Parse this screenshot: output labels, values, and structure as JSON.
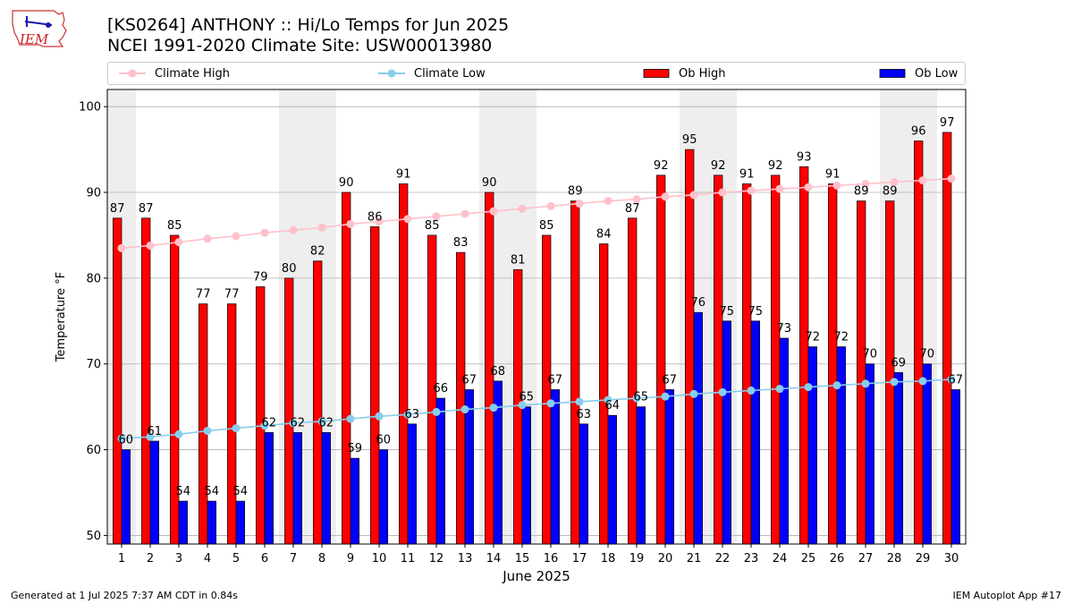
{
  "title_line1": "[KS0264] ANTHONY :: Hi/Lo Temps for Jun 2025",
  "title_line2": "NCEI 1991-2020 Climate Site: USW00013980",
  "logo_text": "IEM",
  "footer_left": "Generated at 1 Jul 2025 7:37 AM CDT in 0.84s",
  "footer_right": "IEM Autoplot App #17",
  "legend": {
    "climate_high": "Climate High",
    "climate_low": "Climate Low",
    "ob_high": "Ob High",
    "ob_low": "Ob Low"
  },
  "colors": {
    "ob_high": "#ff0000",
    "ob_low": "#0000ff",
    "climate_high": "#ffc0cb",
    "climate_low": "#87ceeb",
    "weekend_shade": "#eeeeee"
  },
  "chart_data": {
    "type": "bar",
    "xlabel": "June 2025",
    "ylabel": "Temperature °F",
    "ylim": [
      49,
      102
    ],
    "yticks": [
      50,
      60,
      70,
      80,
      90,
      100
    ],
    "grid": "horizontal",
    "legend_position": "top",
    "categories": [
      "1",
      "2",
      "3",
      "4",
      "5",
      "6",
      "7",
      "8",
      "9",
      "10",
      "11",
      "12",
      "13",
      "14",
      "15",
      "16",
      "17",
      "18",
      "19",
      "20",
      "21",
      "22",
      "23",
      "24",
      "25",
      "26",
      "27",
      "28",
      "29",
      "30"
    ],
    "weekend_days": [
      1,
      7,
      8,
      14,
      15,
      21,
      22,
      28,
      29
    ],
    "series": [
      {
        "name": "Ob High",
        "kind": "bar",
        "values": [
          87,
          87,
          85,
          77,
          77,
          79,
          80,
          82,
          90,
          86,
          91,
          85,
          83,
          90,
          81,
          85,
          89,
          84,
          87,
          92,
          95,
          92,
          91,
          92,
          93,
          91,
          89,
          89,
          96,
          97
        ]
      },
      {
        "name": "Ob Low",
        "kind": "bar",
        "values": [
          60,
          61,
          54,
          54,
          54,
          62,
          62,
          62,
          59,
          60,
          63,
          66,
          67,
          68,
          65,
          67,
          63,
          64,
          65,
          67,
          76,
          75,
          75,
          73,
          72,
          72,
          70,
          69,
          70,
          67
        ]
      },
      {
        "name": "Climate High",
        "kind": "line",
        "values": [
          83.5,
          83.8,
          84.2,
          84.6,
          84.9,
          85.3,
          85.6,
          85.9,
          86.3,
          86.6,
          86.9,
          87.2,
          87.5,
          87.8,
          88.1,
          88.4,
          88.7,
          89.0,
          89.2,
          89.5,
          89.7,
          90.0,
          90.2,
          90.4,
          90.6,
          90.8,
          91.0,
          91.2,
          91.4,
          91.6
        ]
      },
      {
        "name": "Climate Low",
        "kind": "line",
        "values": [
          61.3,
          61.5,
          61.8,
          62.2,
          62.5,
          62.8,
          63.1,
          63.3,
          63.6,
          63.9,
          64.1,
          64.4,
          64.7,
          64.9,
          65.2,
          65.4,
          65.6,
          65.8,
          66.0,
          66.2,
          66.5,
          66.7,
          66.9,
          67.1,
          67.3,
          67.5,
          67.7,
          67.9,
          68.0,
          68.2
        ]
      }
    ]
  }
}
